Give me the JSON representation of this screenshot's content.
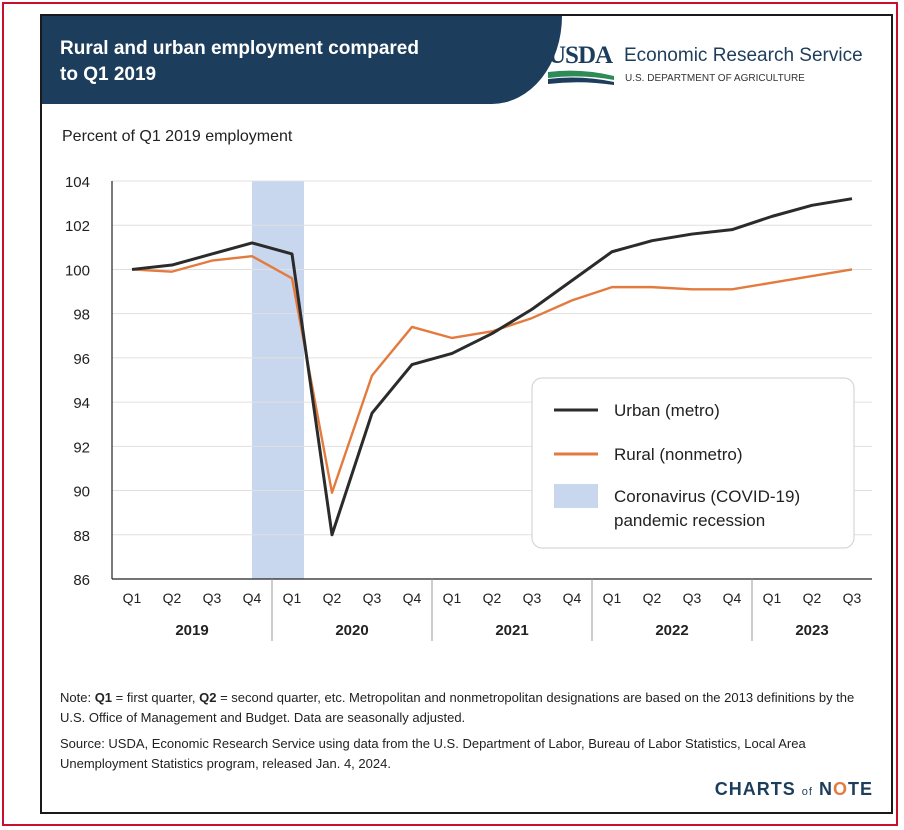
{
  "header": {
    "title": "Rural and urban employment compared\nto Q1 2019",
    "agency_logo": "USDA",
    "agency_name": "Economic Research Service",
    "department": "U.S. DEPARTMENT OF AGRICULTURE"
  },
  "colors": {
    "header_bg": "#1d3d5c",
    "urban": "#2b2b2b",
    "rural": "#e37b3f",
    "recession": "#c9d7ee",
    "gridline": "#e0e0e0"
  },
  "chart_data": {
    "type": "line",
    "ylabel": "Percent of Q1 2019 employment",
    "ylim": [
      86,
      104
    ],
    "yticks": [
      86,
      88,
      90,
      92,
      94,
      96,
      98,
      100,
      102,
      104
    ],
    "quarters": [
      "Q1",
      "Q2",
      "Q3",
      "Q4",
      "Q1",
      "Q2",
      "Q3",
      "Q4",
      "Q1",
      "Q2",
      "Q3",
      "Q4",
      "Q1",
      "Q2",
      "Q3",
      "Q4",
      "Q1",
      "Q2",
      "Q3"
    ],
    "years": [
      {
        "label": "2019",
        "count": 4
      },
      {
        "label": "2020",
        "count": 4
      },
      {
        "label": "2021",
        "count": 4
      },
      {
        "label": "2022",
        "count": 4
      },
      {
        "label": "2023",
        "count": 3
      }
    ],
    "series": [
      {
        "name": "Urban (metro)",
        "values": [
          100.0,
          100.2,
          100.7,
          101.2,
          100.7,
          88.0,
          93.5,
          95.7,
          96.2,
          97.1,
          98.2,
          99.5,
          100.8,
          101.3,
          101.6,
          101.8,
          102.4,
          102.9,
          103.2
        ]
      },
      {
        "name": "Rural (nonmetro)",
        "values": [
          100.0,
          99.9,
          100.4,
          100.6,
          99.6,
          89.9,
          95.2,
          97.4,
          96.9,
          97.2,
          97.8,
          98.6,
          99.2,
          99.2,
          99.1,
          99.1,
          99.4,
          99.7,
          100.0
        ]
      }
    ],
    "recession": {
      "label": "Coronavirus (COVID-19)\npandemic recession",
      "start_index": 3,
      "end_index": 4
    },
    "legend_position": "right-center",
    "grid": true
  },
  "notes": {
    "note": "Note: Q1 = first quarter, Q2 = second quarter, etc. Metropolitan and nonmetropolitan designations are based on the 2013 definitions by the U.S. Office of Management and Budget. Data are seasonally adjusted.",
    "source": "Source: USDA, Economic Research Service using data from the U.S. Department of Labor, Bureau of Labor Statistics, Local Area Unemployment Statistics program, released Jan. 4, 2024."
  },
  "branding": {
    "prefix": "CHARTS",
    "of": "of",
    "n": "N",
    "o": "O",
    "suffix": "TE"
  }
}
